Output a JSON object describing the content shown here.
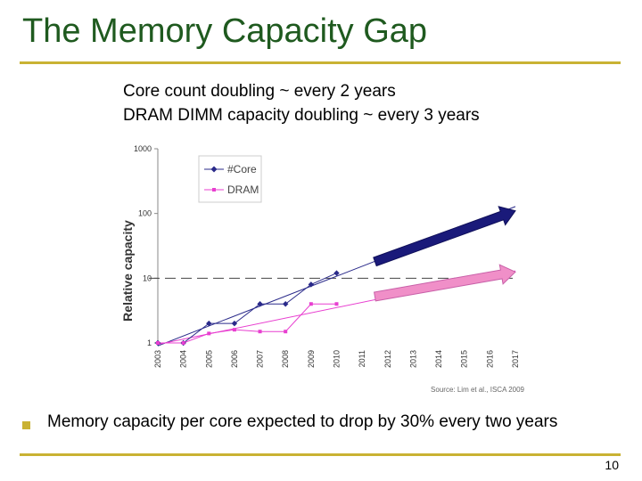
{
  "slide": {
    "title": "The Memory Capacity Gap",
    "subtitle_lines": [
      "Core count doubling ~ every 2 years",
      "DRAM DIMM capacity doubling ~ every 3 years"
    ],
    "bullet": "Memory capacity per core expected to drop by 30% every two years",
    "page_number": "10"
  },
  "colors": {
    "title": "#1f5a1f",
    "rule": "#c9b233",
    "core_series": "#2a2a8a",
    "dram_series": "#e83fd0",
    "core_arrow": "#1a1a7a",
    "dram_arrow": "#f08fc8"
  },
  "chart_data": {
    "type": "scatter",
    "scale": "log",
    "ylabel": "Relative capacity",
    "xlabel": "",
    "yticks": [
      1,
      10,
      100,
      1000
    ],
    "ytick_labels": [
      "1",
      "10",
      "100",
      "1000"
    ],
    "ylim": [
      1,
      1000
    ],
    "xlim": [
      2003,
      2017
    ],
    "x_categories": [
      "2003",
      "2004",
      "2005",
      "2006",
      "2007",
      "2008",
      "2009",
      "2010",
      "2011",
      "2012",
      "2013",
      "2014",
      "2015",
      "2016",
      "2017"
    ],
    "grid": false,
    "legend_position": "top-left",
    "series": [
      {
        "name": "#Core",
        "marker": "diamond",
        "points": [
          {
            "x": 2003,
            "y": 1
          },
          {
            "x": 2004,
            "y": 1
          },
          {
            "x": 2005,
            "y": 2
          },
          {
            "x": 2006,
            "y": 2
          },
          {
            "x": 2007,
            "y": 4
          },
          {
            "x": 2008,
            "y": 4
          },
          {
            "x": 2009,
            "y": 8
          },
          {
            "x": 2010,
            "y": 12
          }
        ],
        "trend": {
          "from": [
            2003,
            0.9
          ],
          "to": [
            2017,
            128
          ]
        }
      },
      {
        "name": "DRAM",
        "marker": "square",
        "points": [
          {
            "x": 2003,
            "y": 1
          },
          {
            "x": 2004,
            "y": 1
          },
          {
            "x": 2005,
            "y": 1.4
          },
          {
            "x": 2006,
            "y": 1.6
          },
          {
            "x": 2007,
            "y": 1.5
          },
          {
            "x": 2008,
            "y": 1.5
          },
          {
            "x": 2009,
            "y": 4
          },
          {
            "x": 2010,
            "y": 4
          }
        ],
        "trend": {
          "from": [
            2003,
            0.95
          ],
          "to": [
            2017,
            13
          ]
        }
      }
    ],
    "reference_line": {
      "y": 10,
      "style": "dashed"
    },
    "source": "Source: Lim et al., ISCA 2009"
  }
}
